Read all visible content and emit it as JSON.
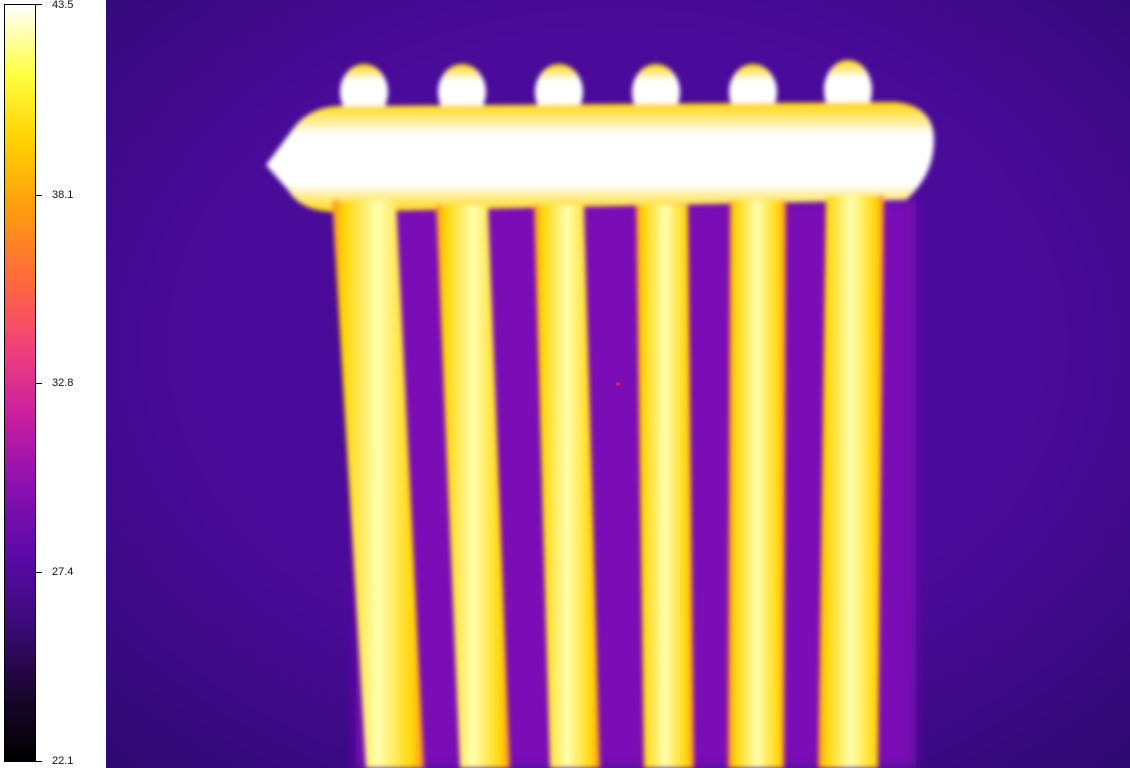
{
  "scale": {
    "max": "43.5",
    "t2": "38.1",
    "t3": "32.8",
    "t4": "27.4",
    "min": "22.1",
    "gradient": [
      "#000000",
      "#1a0630",
      "#3a0a78",
      "#5a0aa8",
      "#8a10b0",
      "#c81ea0",
      "#f0407a",
      "#ff6a3c",
      "#ff9a10",
      "#ffd000",
      "#ffff40",
      "#ffffff"
    ]
  },
  "palette": {
    "background": "#4a0a9a",
    "background_dark": "#2d0a70",
    "gap_inner": "#7a0ab6",
    "hot_edge": "#ff8a2a",
    "hot_mid": "#ffd400",
    "hot_core": "#ffffb0",
    "hottest": "#ffffff"
  }
}
